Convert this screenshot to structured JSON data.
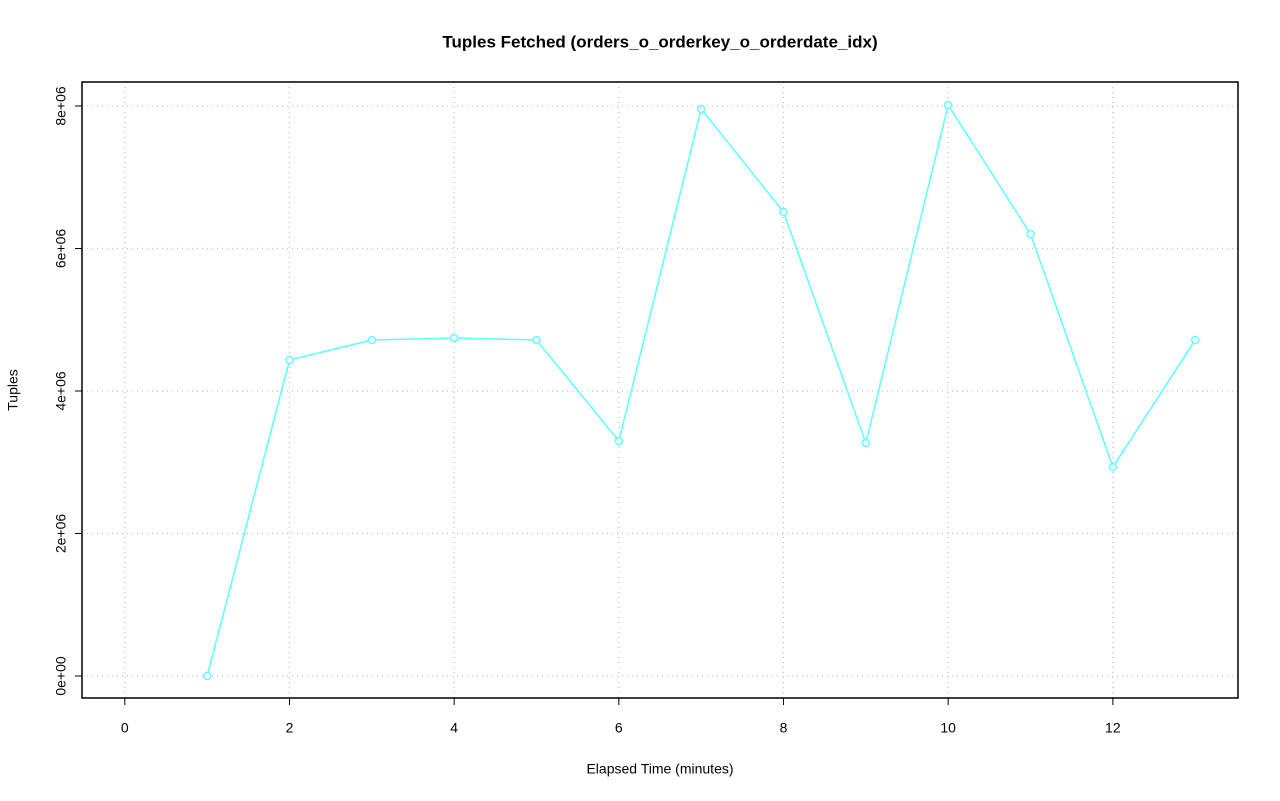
{
  "chart_data": {
    "type": "line",
    "title": "Tuples Fetched (orders_o_orderkey_o_orderdate_idx)",
    "x_label": "Elapsed Time (minutes)",
    "y_label": "Tuples",
    "x": [
      1,
      2,
      3,
      4,
      5,
      6,
      7,
      8,
      9,
      10,
      11,
      12,
      13
    ],
    "series": [
      {
        "name": "orders_o_orderkey_o_orderdate_idx",
        "color": "#66ffff",
        "values": [
          0,
          4435000,
          4716000,
          4744000,
          4716000,
          3298000,
          7958000,
          6512000,
          3270000,
          8014000,
          6203000,
          2933000,
          4716000
        ]
      }
    ],
    "xlim": [
      -0.52,
      13.52
    ],
    "xticks": [
      0,
      2,
      4,
      6,
      8,
      10,
      12
    ],
    "ylim": [
      -309000,
      8337000
    ],
    "yticks": [
      {
        "value": 0,
        "label": "0e+00"
      },
      {
        "value": 2000000,
        "label": "2e+06"
      },
      {
        "value": 4000000,
        "label": "4e+06"
      },
      {
        "value": 6000000,
        "label": "6e+06"
      },
      {
        "value": 8000000,
        "label": "8e+06"
      }
    ],
    "grid": true
  }
}
